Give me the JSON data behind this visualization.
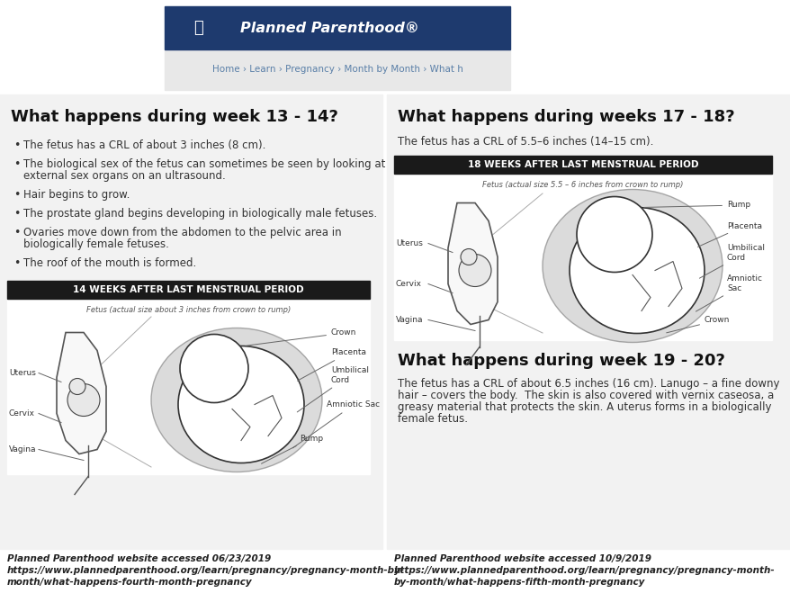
{
  "bg_color": "#ffffff",
  "header_bg": "#1e3a6e",
  "header_text": "Planned Parenthood®",
  "header_text_color": "#ffffff",
  "nav_bg": "#eeeeee",
  "nav_text": "Home › Learn › Pregnancy › Month by Month › What h",
  "nav_text_color": "#5a7fa8",
  "left_panel_bg": "#f2f2f2",
  "right_panel_bg": "#f2f2f2",
  "left_title": "What happens during week 13 - 14?",
  "left_bullets": [
    "The fetus has a CRL of about 3 inches (8 cm).",
    "The biological sex of the fetus can sometimes be seen by looking at\nexternal sex organs on an ultrasound.",
    "Hair begins to grow.",
    "The prostate gland begins developing in biologically male fetuses.",
    "Ovaries move down from the abdomen to the pelvic area in\nbiologically female fetuses.",
    "The roof of the mouth is formed."
  ],
  "left_img_title": "14 WEEKS AFTER LAST MENSTRUAL PERIOD",
  "left_img_subtitle": "Fetus (actual size about 3 inches from crown to rump)",
  "right_title1": "What happens during weeks 17 - 18?",
  "right_text1": "The fetus has a CRL of 5.5–6 inches (14–15 cm).",
  "right_img_title": "18 WEEKS AFTER LAST MENSTRUAL PERIOD",
  "right_img_subtitle": "Fetus (actual size 5.5 – 6 inches from crown to rump)",
  "right_title2": "What happens during week 19 - 20?",
  "right_text2_lines": [
    "The fetus has a CRL of about 6.5 inches (16 cm). Lanugo – a fine downy",
    "hair – covers the body.  The skin is also covered with vernix caseosa, a",
    "greasy material that protects the skin. A uterus forms in a biologically",
    "female fetus."
  ],
  "left_caption": "Planned Parenthood website accessed 06/23/2019\nhttps://www.plannedparenthood.org/learn/pregnancy/pregnancy-month-by-\nmonth/what-happens-fourth-month-pregnancy",
  "right_caption": "Planned Parenthood website accessed 10/9/2019\nhttps://www.plannedparenthood.org/learn/pregnancy/pregnancy-month-\nby-month/what-happens-fifth-month-pregnancy",
  "title_fontsize": 13,
  "body_fontsize": 8.5,
  "caption_fontsize": 7.5,
  "img_box_bg": "#1a1a1a",
  "img_box_text_color": "#ffffff",
  "img_area_bg": "#ffffff",
  "uterus_fill": "#d0d0d0",
  "fetus_fill": "#ffffff"
}
